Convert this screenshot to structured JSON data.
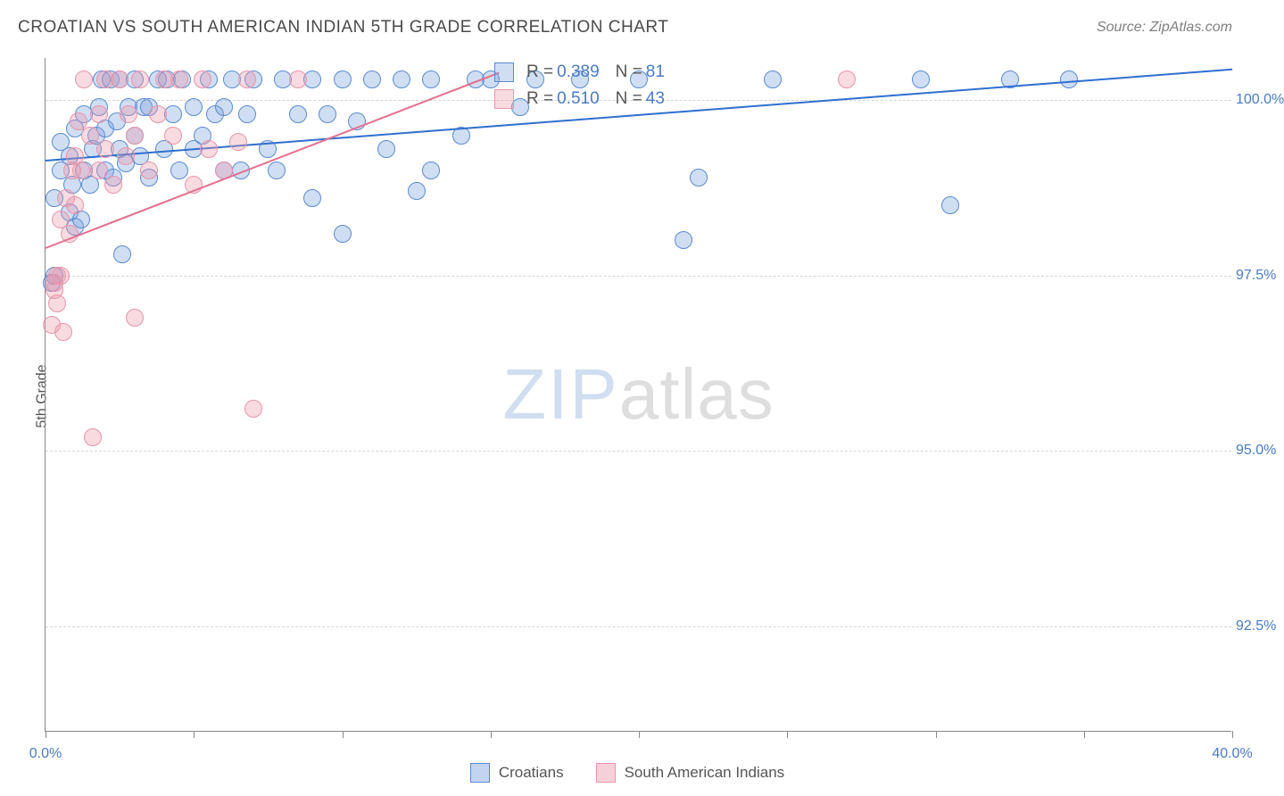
{
  "title": "CROATIAN VS SOUTH AMERICAN INDIAN 5TH GRADE CORRELATION CHART",
  "source": "Source: ZipAtlas.com",
  "ylabel": "5th Grade",
  "watermark": {
    "part1": "ZIP",
    "part2": "atlas"
  },
  "chart": {
    "type": "scatter",
    "background_color": "#ffffff",
    "grid_color": "#d5d5d5",
    "axis_color": "#888888",
    "xlim": [
      0,
      40
    ],
    "ylim": [
      91.0,
      100.6
    ],
    "xtick_positions": [
      0,
      5,
      10,
      15,
      20,
      25,
      30,
      35,
      40
    ],
    "xtick_labels_shown": {
      "0": "0.0%",
      "40": "40.0%"
    },
    "ytick_positions": [
      92.5,
      95.0,
      97.5,
      100.0
    ],
    "ytick_labels": [
      "92.5%",
      "95.0%",
      "97.5%",
      "100.0%"
    ],
    "label_color": "#4a7bc4",
    "label_fontsize": 16
  },
  "series": [
    {
      "name": "Croatians",
      "color_fill": "rgba(120,160,220,0.35)",
      "color_stroke": "#5a8bd0",
      "marker_radius": 10,
      "trend_color": "#2f6fcf",
      "stats": {
        "R": "0.389",
        "N": "81"
      },
      "trend_line": {
        "x1": 0,
        "y1": 99.15,
        "x2": 40,
        "y2": 100.45
      },
      "points": [
        [
          0.2,
          97.4
        ],
        [
          0.3,
          97.5
        ],
        [
          0.3,
          98.6
        ],
        [
          0.5,
          99.0
        ],
        [
          0.5,
          99.4
        ],
        [
          0.8,
          98.4
        ],
        [
          0.8,
          99.2
        ],
        [
          0.9,
          98.8
        ],
        [
          1.0,
          98.2
        ],
        [
          1.0,
          99.6
        ],
        [
          1.2,
          98.3
        ],
        [
          1.3,
          99.0
        ],
        [
          1.3,
          99.8
        ],
        [
          1.5,
          98.8
        ],
        [
          1.6,
          99.3
        ],
        [
          1.7,
          99.5
        ],
        [
          1.8,
          99.9
        ],
        [
          1.9,
          100.3
        ],
        [
          2.0,
          99.0
        ],
        [
          2.0,
          99.6
        ],
        [
          2.2,
          100.3
        ],
        [
          2.3,
          98.9
        ],
        [
          2.4,
          99.7
        ],
        [
          2.5,
          99.3
        ],
        [
          2.5,
          100.3
        ],
        [
          2.6,
          97.8
        ],
        [
          2.7,
          99.1
        ],
        [
          2.8,
          99.9
        ],
        [
          3.0,
          99.5
        ],
        [
          3.0,
          100.3
        ],
        [
          3.2,
          99.2
        ],
        [
          3.3,
          99.9
        ],
        [
          3.5,
          98.9
        ],
        [
          3.5,
          99.9
        ],
        [
          3.8,
          100.3
        ],
        [
          4.0,
          99.3
        ],
        [
          4.1,
          100.3
        ],
        [
          4.3,
          99.8
        ],
        [
          4.5,
          99.0
        ],
        [
          4.6,
          100.3
        ],
        [
          5.0,
          99.3
        ],
        [
          5.0,
          99.9
        ],
        [
          5.3,
          99.5
        ],
        [
          5.5,
          100.3
        ],
        [
          5.7,
          99.8
        ],
        [
          6.0,
          99.0
        ],
        [
          6.0,
          99.9
        ],
        [
          6.3,
          100.3
        ],
        [
          6.6,
          99.0
        ],
        [
          6.8,
          99.8
        ],
        [
          7.0,
          100.3
        ],
        [
          7.5,
          99.3
        ],
        [
          7.8,
          99.0
        ],
        [
          8.0,
          100.3
        ],
        [
          8.5,
          99.8
        ],
        [
          9.0,
          98.6
        ],
        [
          9.0,
          100.3
        ],
        [
          9.5,
          99.8
        ],
        [
          10.0,
          98.1
        ],
        [
          10.0,
          100.3
        ],
        [
          10.5,
          99.7
        ],
        [
          11.0,
          100.3
        ],
        [
          11.5,
          99.3
        ],
        [
          12.0,
          100.3
        ],
        [
          12.5,
          98.7
        ],
        [
          13.0,
          99.0
        ],
        [
          13.0,
          100.3
        ],
        [
          14.0,
          99.5
        ],
        [
          14.5,
          100.3
        ],
        [
          15.0,
          100.3
        ],
        [
          16.0,
          99.9
        ],
        [
          16.5,
          100.3
        ],
        [
          18.0,
          100.3
        ],
        [
          20.0,
          100.3
        ],
        [
          21.5,
          98.0
        ],
        [
          22.0,
          98.9
        ],
        [
          24.5,
          100.3
        ],
        [
          29.5,
          100.3
        ],
        [
          30.5,
          98.5
        ],
        [
          32.5,
          100.3
        ],
        [
          34.5,
          100.3
        ]
      ]
    },
    {
      "name": "South American Indians",
      "color_fill": "rgba(235,150,170,0.35)",
      "color_stroke": "#e895aa",
      "marker_radius": 10,
      "trend_color": "#e46f8e",
      "stats": {
        "R": "0.510",
        "N": "43"
      },
      "trend_line": {
        "x1": 0,
        "y1": 97.9,
        "x2": 15.3,
        "y2": 100.4
      },
      "points": [
        [
          0.2,
          96.8
        ],
        [
          0.3,
          97.3
        ],
        [
          0.3,
          97.4
        ],
        [
          0.4,
          97.1
        ],
        [
          0.4,
          97.5
        ],
        [
          0.5,
          97.5
        ],
        [
          0.5,
          98.3
        ],
        [
          0.6,
          96.7
        ],
        [
          0.7,
          98.6
        ],
        [
          0.8,
          98.1
        ],
        [
          0.9,
          99.0
        ],
        [
          1.0,
          98.5
        ],
        [
          1.0,
          99.2
        ],
        [
          1.1,
          99.7
        ],
        [
          1.2,
          99.0
        ],
        [
          1.3,
          100.3
        ],
        [
          1.5,
          99.5
        ],
        [
          1.6,
          95.2
        ],
        [
          1.8,
          99.0
        ],
        [
          1.8,
          99.8
        ],
        [
          2.0,
          99.3
        ],
        [
          2.0,
          100.3
        ],
        [
          2.3,
          98.8
        ],
        [
          2.5,
          100.3
        ],
        [
          2.7,
          99.2
        ],
        [
          2.8,
          99.8
        ],
        [
          3.0,
          96.9
        ],
        [
          3.0,
          99.5
        ],
        [
          3.2,
          100.3
        ],
        [
          3.5,
          99.0
        ],
        [
          3.8,
          99.8
        ],
        [
          4.0,
          100.3
        ],
        [
          4.3,
          99.5
        ],
        [
          4.5,
          100.3
        ],
        [
          5.0,
          98.8
        ],
        [
          5.3,
          100.3
        ],
        [
          5.5,
          99.3
        ],
        [
          6.0,
          99.0
        ],
        [
          6.5,
          99.4
        ],
        [
          6.8,
          100.3
        ],
        [
          7.0,
          95.6
        ],
        [
          8.5,
          100.3
        ],
        [
          27.0,
          100.3
        ]
      ]
    }
  ],
  "legend": {
    "items": [
      {
        "label": "Croatians",
        "fill": "rgba(120,160,220,0.45)",
        "stroke": "#5a8bd0"
      },
      {
        "label": "South American Indians",
        "fill": "rgba(235,150,170,0.45)",
        "stroke": "#e895aa"
      }
    ]
  }
}
